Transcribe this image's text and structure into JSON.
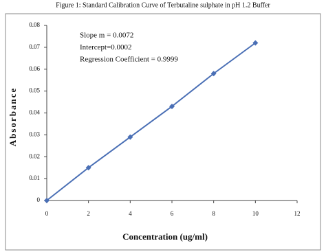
{
  "chart_data": {
    "type": "line",
    "title": "Figure 1: Standard Calibration Curve of Terbutaline sulphate in pH 1.2 Buffer",
    "x_label": "Concentration (ug/ml)",
    "y_label": "Absorbance",
    "annotations": [
      "Slope m   = 0.0072",
      "Intercept=0.0002",
      "Regression Coefficient = 0.9999"
    ],
    "x": [
      0,
      2,
      4,
      6,
      8,
      10
    ],
    "series": [
      {
        "color": "#4a6fb5",
        "values": [
          0,
          0.015,
          0.029,
          0.043,
          0.058,
          0.072
        ]
      }
    ],
    "xlim": [
      0,
      12
    ],
    "xticks": [
      0,
      2,
      4,
      6,
      8,
      10,
      12
    ],
    "ylim": [
      0,
      0.08
    ],
    "yticks": [
      0,
      0.01,
      0.02,
      0.03,
      0.04,
      0.05,
      0.06,
      0.07,
      0.08
    ],
    "grid": false
  }
}
